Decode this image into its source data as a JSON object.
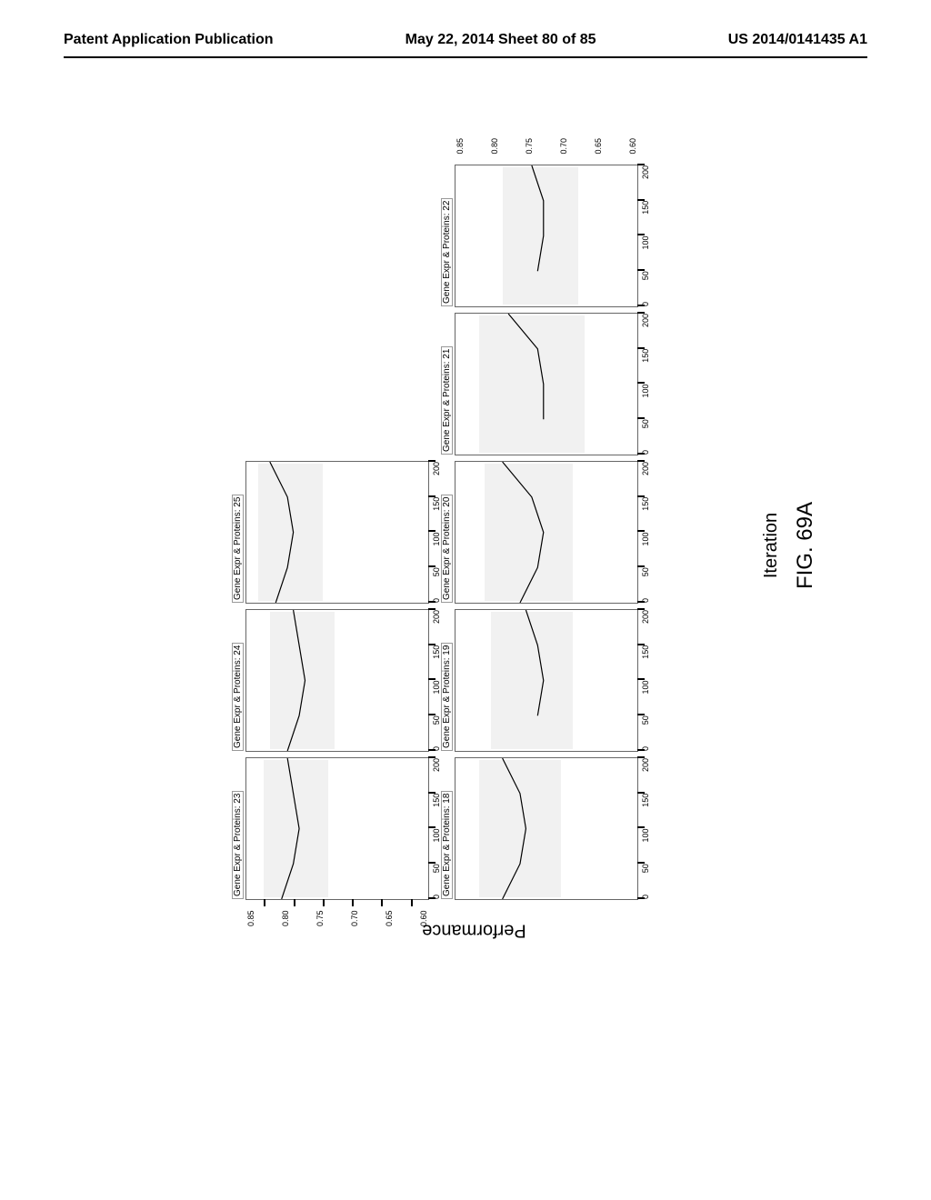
{
  "header": {
    "left": "Patent Application Publication",
    "center": "May 22, 2014  Sheet 80 of 85",
    "right": "US 2014/0141435 A1"
  },
  "figure": {
    "y_label": "Performance",
    "x_label": "Iteration",
    "fig_caption": "FIG. 69A",
    "y_ticks": [
      "0.85",
      "0.80",
      "0.75",
      "0.70",
      "0.65",
      "0.60"
    ],
    "x_ticks_full": [
      "0",
      "50",
      "100",
      "150",
      "200"
    ],
    "x_ticks_partial": [
      "50",
      "100",
      "150",
      "200"
    ],
    "top_row": [
      {
        "title": "Gene Expr & Proteins: 23",
        "curve": [
          [
            0,
            0.82
          ],
          [
            50,
            0.8
          ],
          [
            100,
            0.79
          ],
          [
            150,
            0.8
          ],
          [
            200,
            0.81
          ]
        ],
        "band": [
          0.74,
          0.85
        ],
        "show_x": true,
        "show_y": true
      },
      {
        "title": "Gene Expr & Proteins: 24",
        "curve": [
          [
            0,
            0.81
          ],
          [
            50,
            0.79
          ],
          [
            100,
            0.78
          ],
          [
            150,
            0.79
          ],
          [
            200,
            0.8
          ]
        ],
        "band": [
          0.73,
          0.84
        ],
        "show_x": true
      },
      {
        "title": "Gene Expr & Proteins: 25",
        "curve": [
          [
            0,
            0.83
          ],
          [
            50,
            0.81
          ],
          [
            100,
            0.8
          ],
          [
            150,
            0.81
          ],
          [
            200,
            0.84
          ]
        ],
        "band": [
          0.75,
          0.86
        ],
        "show_x": true
      }
    ],
    "bottom_row": [
      {
        "title": "Gene Expr & Proteins: 18",
        "curve": [
          [
            0,
            0.8
          ],
          [
            50,
            0.77
          ],
          [
            100,
            0.76
          ],
          [
            150,
            0.77
          ],
          [
            200,
            0.8
          ]
        ],
        "band": [
          0.7,
          0.84
        ],
        "show_x": true
      },
      {
        "title": "Gene Expr & Proteins: 19",
        "curve": [
          [
            50,
            0.74
          ],
          [
            100,
            0.73
          ],
          [
            150,
            0.74
          ],
          [
            200,
            0.76
          ]
        ],
        "band": [
          0.68,
          0.82
        ],
        "show_x": true
      },
      {
        "title": "Gene Expr & Proteins: 20",
        "curve": [
          [
            0,
            0.77
          ],
          [
            50,
            0.74
          ],
          [
            100,
            0.73
          ],
          [
            150,
            0.75
          ],
          [
            200,
            0.8
          ]
        ],
        "band": [
          0.68,
          0.83
        ],
        "show_x": true
      },
      {
        "title": "Gene Expr & Proteins: 21",
        "curve": [
          [
            50,
            0.73
          ],
          [
            100,
            0.73
          ],
          [
            150,
            0.74
          ],
          [
            200,
            0.79
          ]
        ],
        "band": [
          0.66,
          0.84
        ],
        "show_x": true
      },
      {
        "title": "Gene Expr & Proteins: 22",
        "curve": [
          [
            50,
            0.74
          ],
          [
            100,
            0.73
          ],
          [
            150,
            0.73
          ],
          [
            200,
            0.75
          ]
        ],
        "band": [
          0.67,
          0.8
        ],
        "show_x": true,
        "show_y_right": true
      }
    ],
    "ylim": [
      0.57,
      0.88
    ],
    "xlim": [
      0,
      200
    ],
    "grid_color": "#666666",
    "curve_color": "#000000",
    "band_color": "#e8e8e8",
    "background_color": "#ffffff"
  }
}
